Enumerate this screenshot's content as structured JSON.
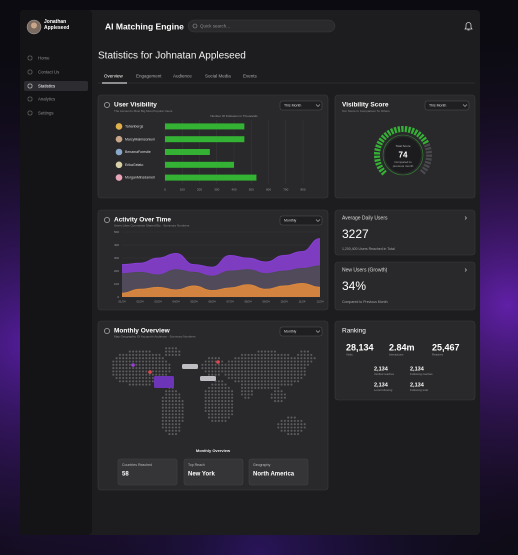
{
  "header": {
    "user_name": "Jonathan Appleseed",
    "app_title": "AI Matching Engine",
    "search_placeholder": "Quick search..."
  },
  "sidebar": {
    "items": [
      "Home",
      "Contact Us",
      "Statistics",
      "Analytics",
      "Settings"
    ]
  },
  "page": {
    "title": "Statistics for Johnatan Appleseed",
    "tabs": [
      "Overview",
      "Engagement",
      "Audience",
      "Social Media",
      "Events"
    ]
  },
  "user_visibility": {
    "title": "User Visibility",
    "subtitle": "The Account's Most Big Most Popular Users",
    "filter": "This Month",
    "chart_data": {
      "type": "bar",
      "orientation": "horizontal",
      "xlabel": "Number Of Followers In Thousands",
      "categories": [
        "Tahanbergs",
        "MarcyMakinsonium",
        "BenamaForestie",
        "ErikaGelato",
        "MorganMinsdamell"
      ],
      "values": [
        460,
        460,
        260,
        400,
        530
      ],
      "color": "#34b233",
      "xlim": [
        0,
        800
      ],
      "xticks": [
        0,
        100,
        200,
        300,
        400,
        500,
        600,
        700,
        800
      ],
      "grid": true
    }
  },
  "visibility_score": {
    "title": "Visibility Score",
    "subtitle": "Our Score In Comparison To Others",
    "filter": "This Month",
    "chart_data": {
      "type": "gauge",
      "value": 74,
      "ylim": [
        0,
        100
      ],
      "color": "#34b233",
      "label": "Total Score",
      "caption": "Compared to previous month"
    }
  },
  "activity": {
    "title": "Activity Over Time",
    "subtitle": "Users Likes Comments Shared Etc - Summary Numbers",
    "filter": "Monthly",
    "chart_data": {
      "type": "area",
      "categories": [
        "01/24",
        "02/24",
        "03/24",
        "04/24",
        "05/24",
        "06/24",
        "07/24",
        "08/24",
        "09/24",
        "10/24",
        "11/24",
        "12/24"
      ],
      "series": [
        {
          "color": "#8d3fdc",
          "values": [
            250,
            260,
            300,
            335,
            250,
            230,
            320,
            300,
            270,
            320,
            350,
            450
          ]
        },
        {
          "color": "#4b4b50",
          "values": [
            180,
            190,
            170,
            210,
            190,
            160,
            200,
            210,
            180,
            200,
            220,
            240
          ]
        },
        {
          "color": "#e08a3c",
          "values": [
            30,
            60,
            75,
            55,
            85,
            50,
            70,
            95,
            60,
            85,
            105,
            75
          ]
        }
      ],
      "ylim": [
        0,
        500
      ],
      "yticks": [
        0,
        100,
        200,
        300,
        400,
        500
      ],
      "grid": true
    }
  },
  "average_daily_users": {
    "title": "Average Daily Users",
    "value": 3227,
    "caption": "1,200,400 Users Reached in Total"
  },
  "new_users": {
    "title": "New Users (Growth)",
    "value": "34%",
    "caption": "Compared to Previous Month"
  },
  "monthly_overview": {
    "title": "Monthly Overview",
    "subtitle": "Map Geographic Of Account's Audience - Summary Numbers",
    "filter": "Monthly",
    "map_title": "Monthly Overview",
    "stats": [
      {
        "label": "Countries Reached",
        "value": 58
      },
      {
        "label": "Top Reach",
        "value": "New York"
      },
      {
        "label": "Geography",
        "value": "North America"
      }
    ]
  },
  "ranking": {
    "title": "Ranking",
    "stats": [
      {
        "value": "28,134",
        "label": "Visits"
      },
      {
        "value": "2.84m",
        "label": "Interactions"
      },
      {
        "value": "25,467",
        "label": "Reaches"
      },
      {
        "value": "2,134",
        "label": "Verified reaches"
      },
      {
        "value": "2,134",
        "label": "Following reaches"
      },
      {
        "value": "2,134",
        "label": "Local following"
      },
      {
        "value": "2,134",
        "label": "Following total"
      }
    ]
  }
}
